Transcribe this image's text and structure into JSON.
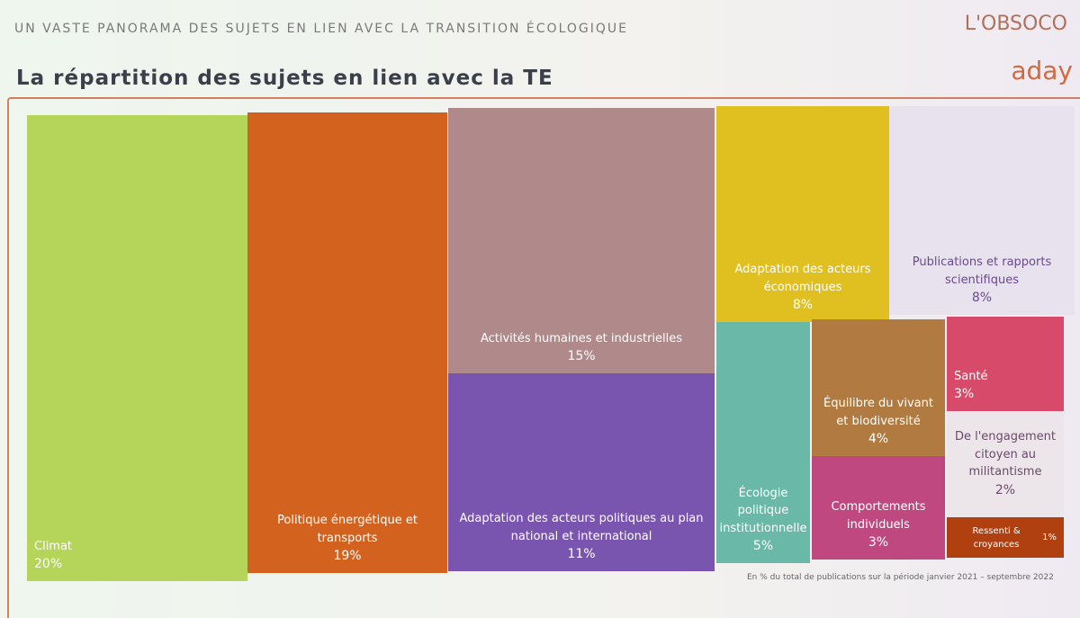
{
  "header": {
    "kicker": "UN VASTE PANORAMA DES SUJETS EN LIEN AVEC LA TRANSITION ÉCOLOGIQUE",
    "title": "La répartition des sujets en lien avec la TE",
    "logo_top": "L'OBSOCO",
    "logo_bottom": "aday"
  },
  "chart_data": {
    "type": "treemap",
    "categories": [
      "Climat",
      "Politique énergétique et transports",
      "Activités humaines et industrielles",
      "Adaptation des acteurs politiques au plan national et international",
      "Adaptation des acteurs économiques",
      "Publications et rapports scientifiques",
      "Écologie politique institutionnelle",
      "Équilibre du vivant et biodiversité",
      "Comportements individuels",
      "Santé",
      "De l'engagement citoyen au militantisme",
      "Ressenti & croyances"
    ],
    "values": [
      20,
      19,
      15,
      11,
      8,
      8,
      5,
      4,
      3,
      3,
      2,
      1
    ],
    "value_labels": [
      "20%",
      "19%",
      "15%",
      "11%",
      "8%",
      "8%",
      "5%",
      "4%",
      "3%",
      "3%",
      "2%",
      "1%"
    ],
    "colors": [
      "#b5d45a",
      "#d4621f",
      "#b08a8a",
      "#7a55b0",
      "#e0c020",
      "#e8e2ef",
      "#6ab8a8",
      "#b07a40",
      "#c04880",
      "#d84a6a",
      "#ece6ea",
      "#b04010"
    ]
  },
  "footnote": "En % du total de publications sur la période janvier 2021 – septembre 2022"
}
